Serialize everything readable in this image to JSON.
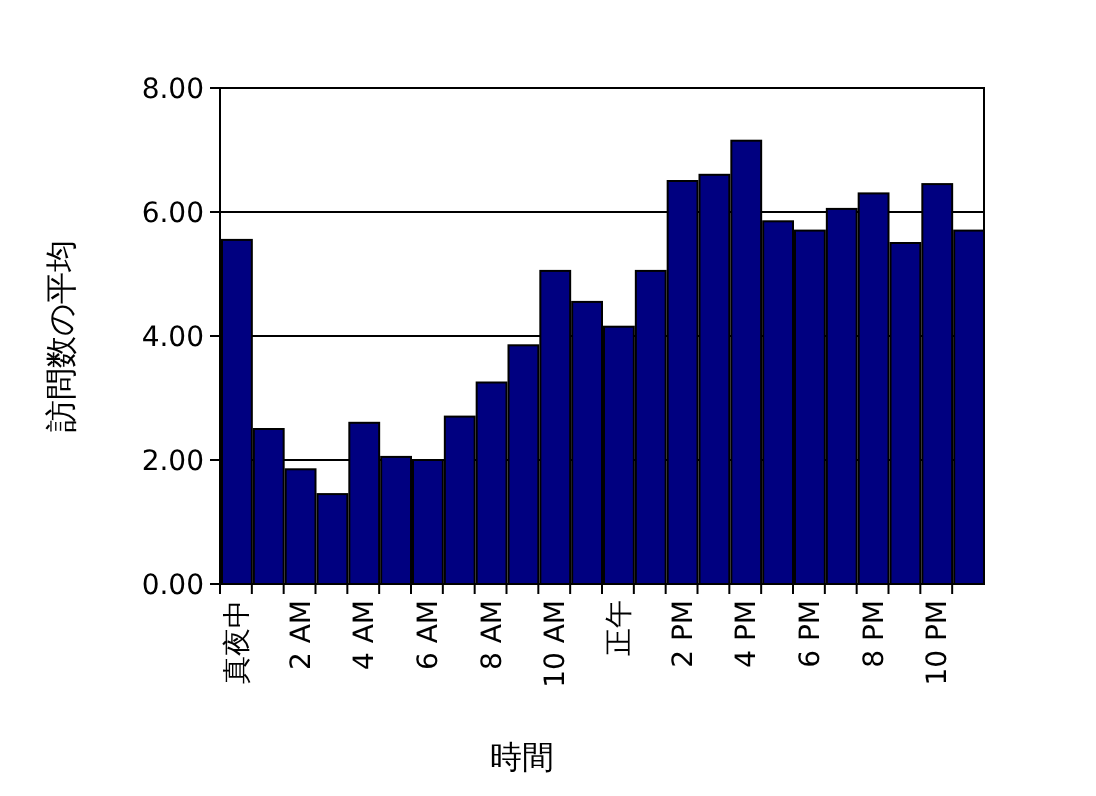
{
  "chart_data": {
    "type": "bar",
    "xlabel": "時間",
    "ylabel": "訪問数の平均",
    "categories": [
      "真夜中",
      null,
      "2 AM",
      null,
      "4 AM",
      null,
      "6 AM",
      null,
      "8 AM",
      null,
      "10 AM",
      null,
      "正午",
      null,
      "2 PM",
      null,
      "4 PM",
      null,
      "6 PM",
      null,
      "8 PM",
      null,
      "10 PM",
      null
    ],
    "values": [
      5.55,
      2.5,
      1.85,
      1.45,
      2.6,
      2.05,
      2.0,
      2.7,
      3.25,
      3.85,
      5.05,
      4.55,
      4.15,
      5.05,
      6.5,
      6.6,
      7.15,
      5.85,
      5.7,
      6.05,
      6.3,
      5.5,
      6.45,
      5.7
    ],
    "color": "#000080",
    "ylim": [
      0,
      8
    ],
    "yticks": [
      {
        "value": 0,
        "label": "0.00"
      },
      {
        "value": 2,
        "label": "2.00"
      },
      {
        "value": 4,
        "label": "4.00"
      },
      {
        "value": 6,
        "label": "6.00"
      },
      {
        "value": 8,
        "label": "8.00"
      }
    ],
    "grid": "y"
  }
}
